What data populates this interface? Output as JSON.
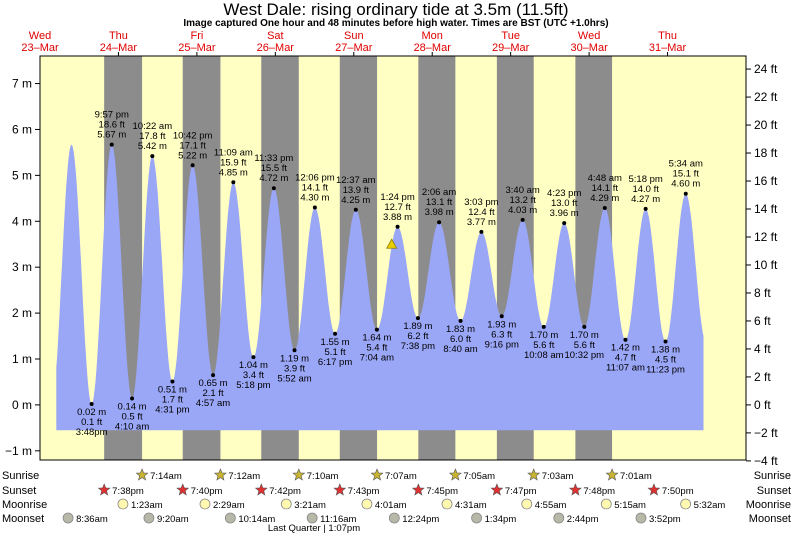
{
  "chart_data": {
    "type": "area",
    "title": "West Dale: rising  ordinary tide at 3.5m (11.5ft)",
    "subtitle": "Image captured One hour and 48 minutes before high water. Times are BST (UTC +1.0hrs)",
    "days": [
      {
        "name": "Wed",
        "date": "23–Mar",
        "t": 0
      },
      {
        "name": "Thu",
        "date": "24–Mar",
        "t": 24
      },
      {
        "name": "Fri",
        "date": "25–Mar",
        "t": 48
      },
      {
        "name": "Sat",
        "date": "26–Mar",
        "t": 72
      },
      {
        "name": "Sun",
        "date": "27–Mar",
        "t": 96
      },
      {
        "name": "Mon",
        "date": "28–Mar",
        "t": 120
      },
      {
        "name": "Tue",
        "date": "29–Mar",
        "t": 144
      },
      {
        "name": "Wed",
        "date": "30–Mar",
        "t": 168
      },
      {
        "name": "Thu",
        "date": "31–Mar",
        "t": 192
      }
    ],
    "x_range_hours": [
      0,
      216
    ],
    "ylim_m": [
      -1.2,
      7.6
    ],
    "ylim_ft": [
      -4,
      25
    ],
    "y_ticks_m": [
      -1,
      0,
      1,
      2,
      3,
      4,
      5,
      6,
      7
    ],
    "y_tick_labels_m": [
      "−1 m",
      "0 m",
      "1 m",
      "2 m",
      "3 m",
      "4 m",
      "5 m",
      "6 m",
      "7 m"
    ],
    "y_ticks_ft": [
      -4,
      -2,
      0,
      2,
      4,
      6,
      8,
      10,
      12,
      14,
      16,
      18,
      20,
      22,
      24
    ],
    "y_tick_labels_ft": [
      "−4 ft",
      "−2 ft",
      "0 ft",
      "2 ft",
      "4 ft",
      "6 ft",
      "8 ft",
      "10 ft",
      "12 ft",
      "14 ft",
      "16 ft",
      "18 ft",
      "20 ft",
      "22 ft",
      "24 ft"
    ],
    "tides": [
      {
        "type": "low",
        "t": 15.8,
        "h": 0.02,
        "time": "3:48pm",
        "ft": "0.1 ft",
        "m": "0.02 m"
      },
      {
        "type": "high",
        "t": 21.95,
        "h": 5.67,
        "time": "9:57 pm",
        "ft": "18.6 ft",
        "m": "5.67 m"
      },
      {
        "type": "low",
        "t": 28.17,
        "h": 0.14,
        "time": "4:10 am",
        "ft": "0.5 ft",
        "m": "0.14 m"
      },
      {
        "type": "high",
        "t": 34.37,
        "h": 5.42,
        "time": "10:22 am",
        "ft": "17.8 ft",
        "m": "5.42 m"
      },
      {
        "type": "low",
        "t": 40.52,
        "h": 0.51,
        "time": "4:31 pm",
        "ft": "1.7 ft",
        "m": "0.51 m"
      },
      {
        "type": "high",
        "t": 46.7,
        "h": 5.22,
        "time": "10:42 pm",
        "ft": "17.1 ft",
        "m": "5.22 m"
      },
      {
        "type": "low",
        "t": 52.95,
        "h": 0.65,
        "time": "4:57 am",
        "ft": "2.1 ft",
        "m": "0.65 m"
      },
      {
        "type": "high",
        "t": 59.15,
        "h": 4.85,
        "time": "11:09 am",
        "ft": "15.9 ft",
        "m": "4.85 m"
      },
      {
        "type": "low",
        "t": 65.3,
        "h": 1.04,
        "time": "5:18 pm",
        "ft": "3.4 ft",
        "m": "1.04 m"
      },
      {
        "type": "high",
        "t": 71.55,
        "h": 4.72,
        "time": "11:33 pm",
        "ft": "15.5 ft",
        "m": "4.72 m"
      },
      {
        "type": "low",
        "t": 77.87,
        "h": 1.19,
        "time": "5:52 am",
        "ft": "3.9 ft",
        "m": "1.19 m"
      },
      {
        "type": "high",
        "t": 84.1,
        "h": 4.3,
        "time": "12:06 pm",
        "ft": "14.1 ft",
        "m": "4.30 m"
      },
      {
        "type": "low",
        "t": 90.28,
        "h": 1.55,
        "time": "6:17 pm",
        "ft": "5.1 ft",
        "m": "1.55 m"
      },
      {
        "type": "high",
        "t": 96.62,
        "h": 4.25,
        "time": "12:37 am",
        "ft": "13.9 ft",
        "m": "4.25 m"
      },
      {
        "type": "low",
        "t": 103.07,
        "h": 1.64,
        "time": "7:04 am",
        "ft": "5.4 ft",
        "m": "1.64 m"
      },
      {
        "type": "high",
        "t": 109.4,
        "h": 3.88,
        "time": "1:24 pm",
        "ft": "12.7 ft",
        "m": "3.88 m"
      },
      {
        "type": "low",
        "t": 115.63,
        "h": 1.89,
        "time": "7:38 pm",
        "ft": "6.2 ft",
        "m": "1.89 m"
      },
      {
        "type": "high",
        "t": 122.1,
        "h": 3.98,
        "time": "2:06 am",
        "ft": "13.1 ft",
        "m": "3.98 m"
      },
      {
        "type": "low",
        "t": 128.67,
        "h": 1.83,
        "time": "8:40 am",
        "ft": "6.0 ft",
        "m": "1.83 m"
      },
      {
        "type": "high",
        "t": 135.05,
        "h": 3.77,
        "time": "3:03 pm",
        "ft": "12.4 ft",
        "m": "3.77 m"
      },
      {
        "type": "low",
        "t": 141.27,
        "h": 1.93,
        "time": "9:16 pm",
        "ft": "6.3 ft",
        "m": "1.93 m"
      },
      {
        "type": "high",
        "t": 147.67,
        "h": 4.03,
        "time": "3:40 am",
        "ft": "13.2 ft",
        "m": "4.03 m"
      },
      {
        "type": "low",
        "t": 154.13,
        "h": 1.7,
        "time": "10:08 am",
        "ft": "5.6 ft",
        "m": "1.70 m"
      },
      {
        "type": "high",
        "t": 160.38,
        "h": 3.96,
        "time": "4:23 pm",
        "ft": "13.0 ft",
        "m": "3.96 m"
      },
      {
        "type": "low",
        "t": 166.53,
        "h": 1.7,
        "time": "10:32 pm",
        "ft": "5.6 ft",
        "m": "1.70 m"
      },
      {
        "type": "high",
        "t": 172.8,
        "h": 4.29,
        "time": "4:48 am",
        "ft": "14.1 ft",
        "m": "4.29 m"
      },
      {
        "type": "low",
        "t": 179.12,
        "h": 1.42,
        "time": "11:07 am",
        "ft": "4.7 ft",
        "m": "1.42 m"
      },
      {
        "type": "high",
        "t": 185.3,
        "h": 4.27,
        "time": "5:18 pm",
        "ft": "14.0 ft",
        "m": "4.27 m"
      },
      {
        "type": "low",
        "t": 191.38,
        "h": 1.38,
        "time": "11:23 pm",
        "ft": "4.5 ft",
        "m": "1.38 m"
      },
      {
        "type": "high",
        "t": 197.57,
        "h": 4.6,
        "time": "5:34 am",
        "ft": "15.1 ft",
        "m": "4.60 m"
      }
    ],
    "current": {
      "t": 107.6,
      "h": 3.5
    },
    "night_shading": [
      {
        "start": 19.63,
        "end": 31.23
      },
      {
        "start": 43.67,
        "end": 55.2
      },
      {
        "start": 67.7,
        "end": 79.17
      },
      {
        "start": 91.72,
        "end": 103.12
      },
      {
        "start": 115.75,
        "end": 127.08
      },
      {
        "start": 139.78,
        "end": 151.05
      },
      {
        "start": 163.8,
        "end": 175.02
      }
    ],
    "colors": {
      "day": "#ffffc4",
      "night": "#8c8c8c",
      "water": "#9aa6f6",
      "day_label": "#e00000",
      "sun": "#c8b432",
      "sunset": "#e03030",
      "moonrise": "#fff8b0",
      "moonset": "#b8b8a8"
    },
    "rows": {
      "sunrise": {
        "label": "Sunrise",
        "events": [
          {
            "t": 31.23,
            "time": "7:14am"
          },
          {
            "t": 55.2,
            "time": "7:12am"
          },
          {
            "t": 79.17,
            "time": "7:10am"
          },
          {
            "t": 103.12,
            "time": "7:07am"
          },
          {
            "t": 127.08,
            "time": "7:05am"
          },
          {
            "t": 151.05,
            "time": "7:03am"
          },
          {
            "t": 175.02,
            "time": "7:01am"
          }
        ]
      },
      "sunset": {
        "label": "Sunset",
        "events": [
          {
            "t": 19.63,
            "time": "7:38pm"
          },
          {
            "t": 43.67,
            "time": "7:40pm"
          },
          {
            "t": 67.7,
            "time": "7:42pm"
          },
          {
            "t": 91.72,
            "time": "7:43pm"
          },
          {
            "t": 115.75,
            "time": "7:45pm"
          },
          {
            "t": 139.78,
            "time": "7:47pm"
          },
          {
            "t": 163.8,
            "time": "7:48pm"
          },
          {
            "t": 187.83,
            "time": "7:50pm"
          }
        ]
      },
      "moonrise": {
        "label": "Moonrise",
        "events": [
          {
            "t": 25.38,
            "time": "1:23am"
          },
          {
            "t": 50.48,
            "time": "2:29am"
          },
          {
            "t": 75.35,
            "time": "3:21am"
          },
          {
            "t": 100.02,
            "time": "4:01am"
          },
          {
            "t": 124.52,
            "time": "4:31am"
          },
          {
            "t": 148.92,
            "time": "4:55am"
          },
          {
            "t": 173.25,
            "time": "5:15am"
          },
          {
            "t": 197.53,
            "time": "5:32am"
          }
        ]
      },
      "moonset": {
        "label": "Moonset",
        "events": [
          {
            "t": 8.6,
            "time": "8:36am"
          },
          {
            "t": 33.33,
            "time": "9:20am"
          },
          {
            "t": 58.23,
            "time": "10:14am"
          },
          {
            "t": 83.27,
            "time": "11:16am"
          },
          {
            "t": 108.4,
            "time": "12:24pm"
          },
          {
            "t": 133.57,
            "time": "1:34pm"
          },
          {
            "t": 158.73,
            "time": "2:44pm"
          },
          {
            "t": 183.87,
            "time": "3:52pm"
          }
        ]
      }
    },
    "moon_phase_note": "Last Quarter | 1:07pm"
  }
}
